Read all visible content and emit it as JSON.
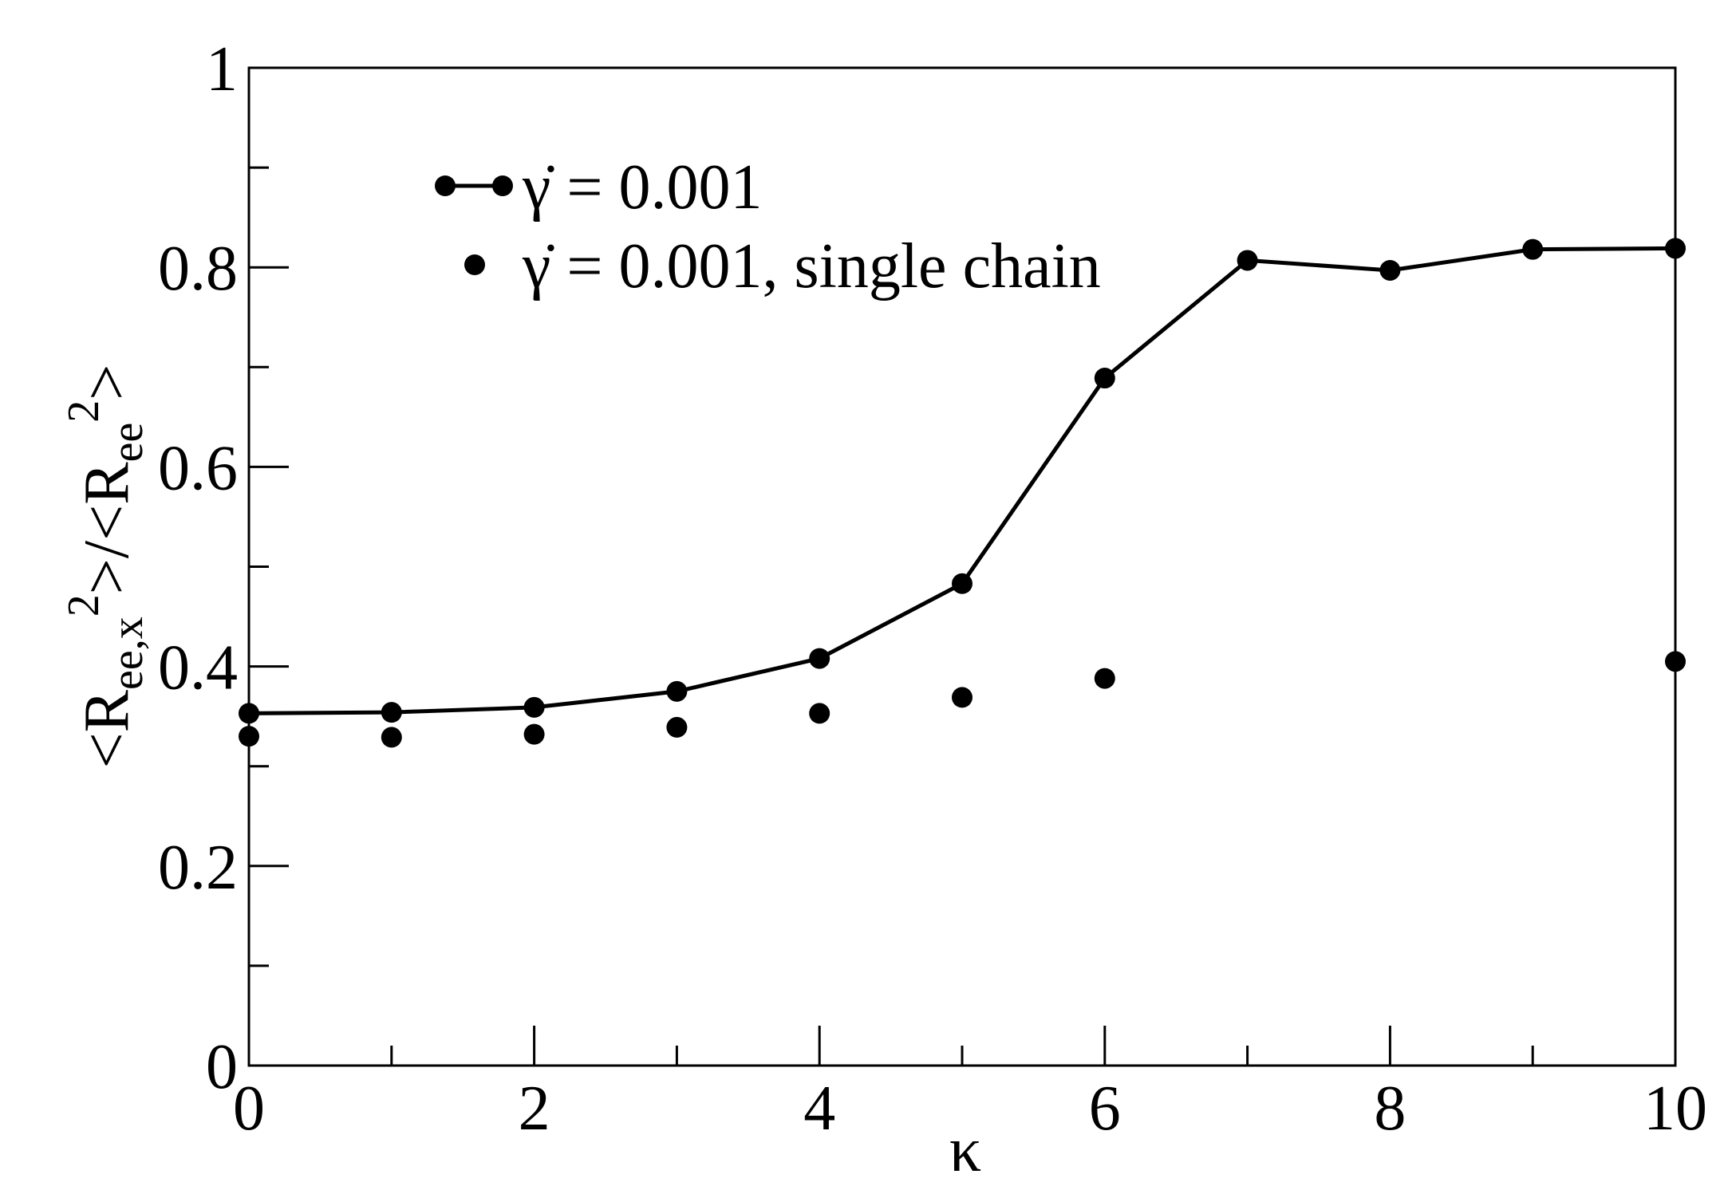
{
  "chart_data": {
    "type": "line",
    "xlabel": "κ",
    "ylabel_parts": [
      "<R",
      "ee,x",
      "2",
      ">/<R",
      "ee",
      "2",
      ">"
    ],
    "series": [
      {
        "name": "γ̇ = 0.001",
        "color": "#000000",
        "style": "line-markers",
        "x": [
          0,
          1,
          2,
          3,
          4,
          5,
          6,
          7,
          8,
          9,
          10
        ],
        "values": [
          0.353,
          0.354,
          0.359,
          0.375,
          0.408,
          0.483,
          0.689,
          0.807,
          0.797,
          0.818,
          0.819
        ]
      },
      {
        "name": "γ̇ = 0.001, single chain",
        "color": "#000000",
        "style": "markers",
        "x": [
          0,
          1,
          2,
          3,
          4,
          5,
          6,
          10
        ],
        "values": [
          0.33,
          0.329,
          0.332,
          0.339,
          0.353,
          0.369,
          0.388,
          0.405
        ]
      }
    ],
    "xlim": [
      0,
      10
    ],
    "xticks": [
      0,
      2,
      4,
      6,
      8,
      10
    ],
    "xminorticks": [
      1,
      3,
      5,
      7,
      9
    ],
    "ylim": [
      0,
      1
    ],
    "yticks": [
      0,
      0.2,
      0.4,
      0.6,
      0.8,
      1
    ],
    "yminorticks": [
      0.1,
      0.3,
      0.5,
      0.7,
      0.9
    ],
    "grid": false
  }
}
